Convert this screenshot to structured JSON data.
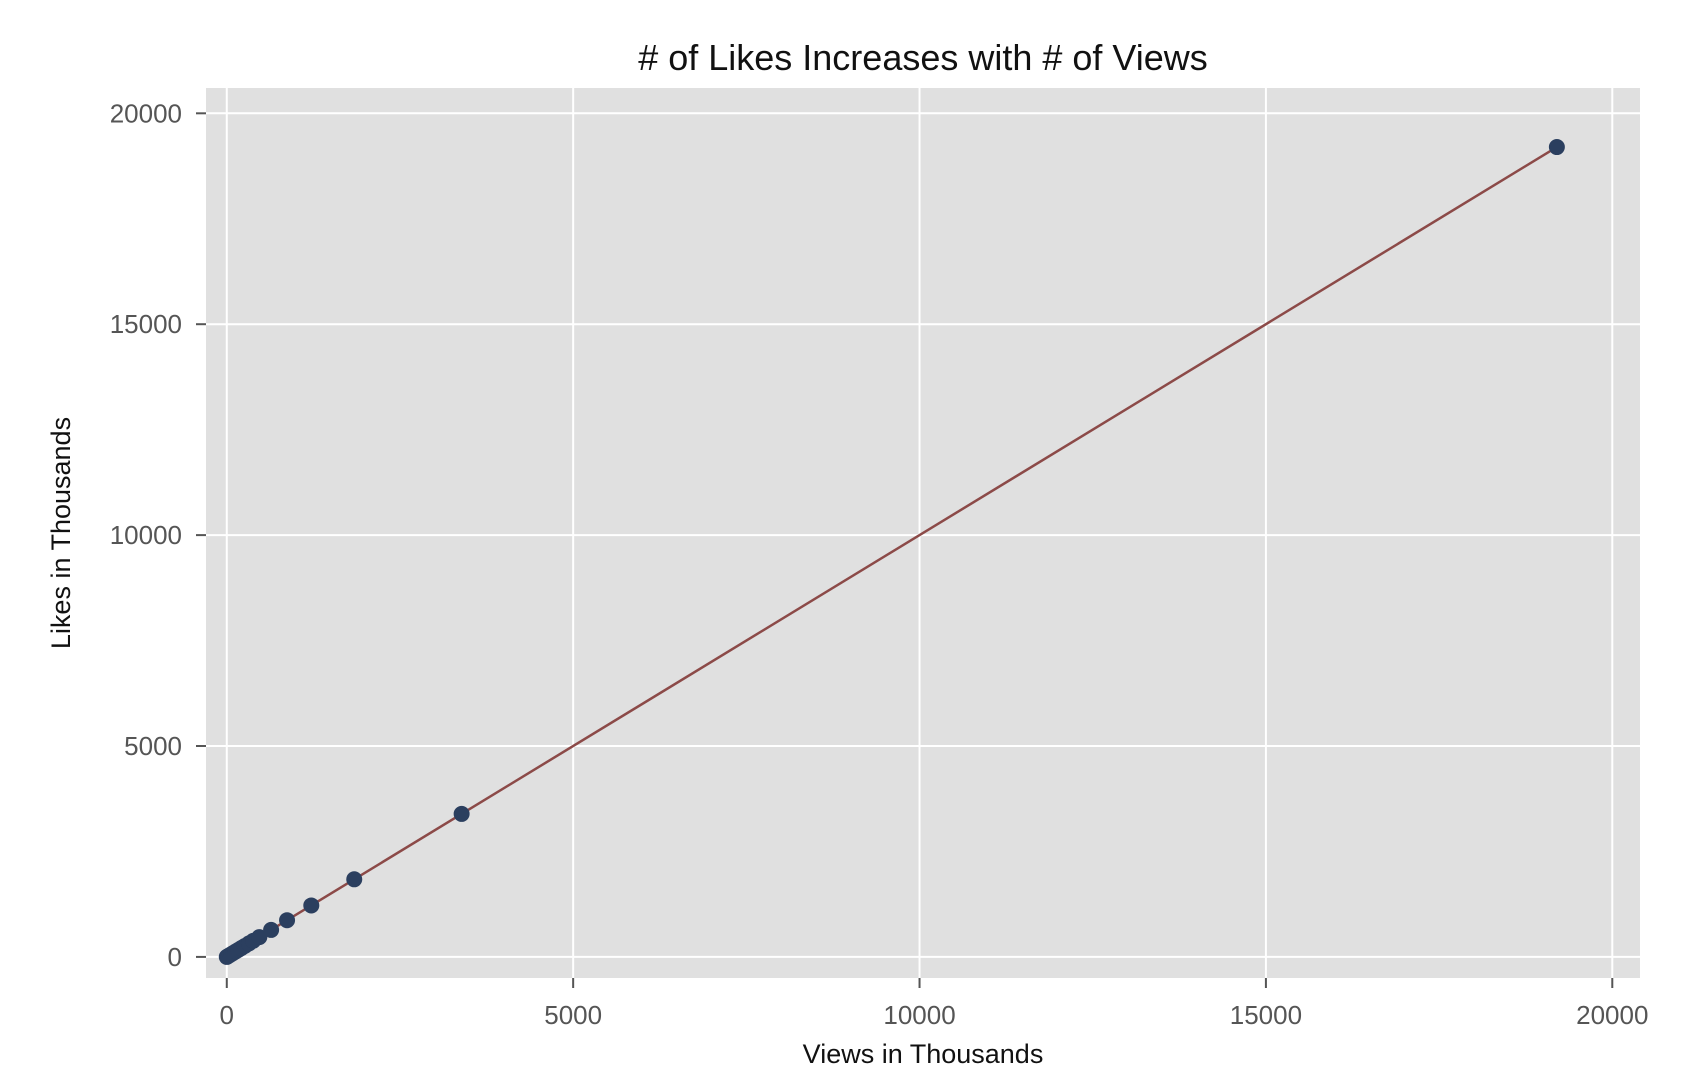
{
  "chart_data": {
    "type": "scatter",
    "title": "# of Likes Increases with # of Views",
    "xlabel": "Views in Thousands",
    "ylabel": "Likes in Thousands",
    "xlim": [
      -300,
      20400
    ],
    "ylim": [
      -500,
      20600
    ],
    "x_ticks": [
      0,
      5000,
      10000,
      15000,
      20000
    ],
    "y_ticks": [
      0,
      5000,
      10000,
      15000,
      20000
    ],
    "x_tick_labels": [
      "0",
      "5000",
      "10000",
      "15000",
      "20000"
    ],
    "y_tick_labels": [
      "0",
      "5000",
      "10000",
      "15000",
      "20000"
    ],
    "grid": true,
    "series": [
      {
        "type": "scatter",
        "x": [
          0,
          10,
          25,
          45,
          70,
          95,
          130,
          170,
          210,
          260,
          320,
          380,
          470,
          640,
          870,
          1220,
          1840,
          3390,
          19200
        ],
        "y": [
          0,
          10,
          25,
          45,
          70,
          95,
          130,
          170,
          210,
          260,
          320,
          380,
          470,
          640,
          870,
          1220,
          1840,
          3390,
          19200
        ]
      },
      {
        "type": "line",
        "x": [
          0,
          19200
        ],
        "y": [
          0,
          19200
        ]
      }
    ],
    "colors": {
      "points": "#2b3f5f",
      "fit_line": "#8c4a48",
      "plot_background": "#e0e0e0",
      "gridline": "#ffffff"
    }
  }
}
